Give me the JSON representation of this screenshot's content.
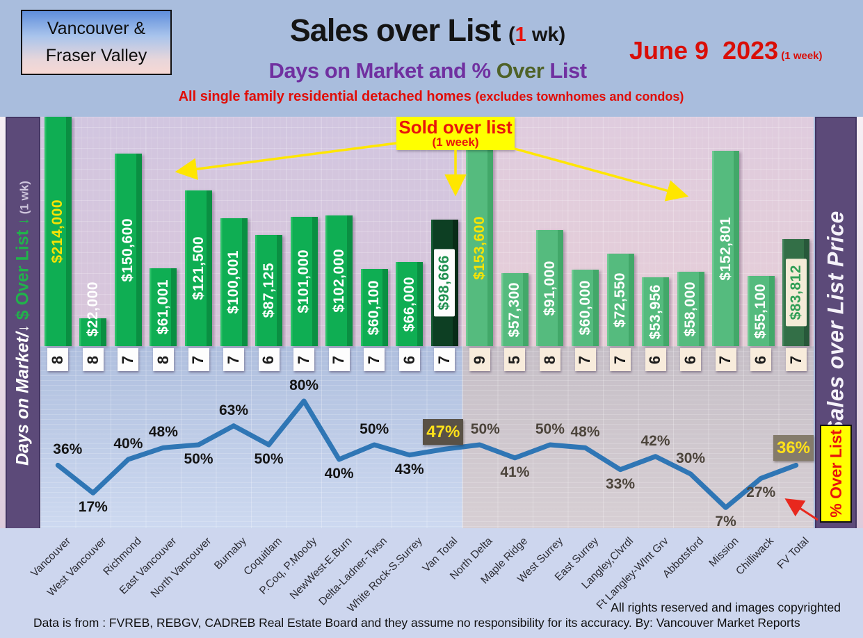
{
  "header": {
    "region_line1": "Vancouver &",
    "region_line2": "Fraser Valley",
    "title": "Sales over List ",
    "title_paren_open": "(",
    "title_one": "1",
    "title_rest": " wk)",
    "subtitle_part1": "Days on Market and % ",
    "subtitle_over": "Over",
    "subtitle_list": " List",
    "tagline_main": "All single family residential detached homes ",
    "tagline_paren": "(excludes townhomes and condos)",
    "date": "June 9  2023",
    "date_note": " (1 week)"
  },
  "left_axis": {
    "part1": "Days on Market/",
    "arrow1": "↓",
    "part2": " $ Over List ",
    "arrow2": "↓",
    "part3": " (1 wk)"
  },
  "right_axis_label": "Sales over List Price",
  "callout": {
    "line1": "Sold over list",
    "line2": "(1 week)"
  },
  "pct_over_list_tag": "% Over List",
  "footer": {
    "rights": "All rights reserved and  images copyrighted",
    "source": "Data is from : FVREB, REBGV, CADREB Real Estate Board and they assume no responsibility for its accuracy. By: Vancouver Market Reports"
  },
  "chart_data": {
    "type": "combo (bar + line)",
    "categories": [
      "Vancouver",
      "West Vancouver",
      "Richmond",
      "East Vancouver",
      "North Vancouver",
      "Burnaby",
      "Coquitlam",
      "P.Coq, P.Moody",
      "NewWest-E.Burn",
      "Delta-Ladner-Twsn",
      "White Rock-S.Surrey",
      "Van Total",
      "North Delta",
      "Maple Ridge",
      "West Surrey",
      "East Surrey",
      "Langley,Clvrdl",
      "Ft Langley-WInt Grv",
      "Abbotsford",
      "Mission",
      "Chilliwack",
      "FV Total"
    ],
    "series": [
      {
        "name": "$ Over List (1 wk)",
        "type": "bar",
        "values": [
          214000,
          22000,
          150600,
          61001,
          121500,
          100001,
          87125,
          101000,
          102000,
          60100,
          66000,
          98666,
          153600,
          57300,
          91000,
          60000,
          72550,
          53956,
          58000,
          152801,
          55100,
          83812
        ],
        "labels": [
          "$214,000",
          "$22,000",
          "$150,600",
          "$61,001",
          "$121,500",
          "$100,001",
          "$87,125",
          "$101,000",
          "$102,000",
          "$60,100",
          "$66,000",
          "$98,666",
          "$153,600",
          "$57,300",
          "$91,000",
          "$60,000",
          "$72,550",
          "$53,956",
          "$58,000",
          "$152,801",
          "$55,100",
          "$83,812"
        ]
      },
      {
        "name": "Days on Market",
        "type": "table",
        "values": [
          8,
          8,
          7,
          8,
          7,
          7,
          6,
          7,
          7,
          7,
          6,
          7,
          9,
          5,
          8,
          7,
          7,
          6,
          6,
          7,
          6,
          7
        ]
      },
      {
        "name": "% Over List",
        "type": "line",
        "values": [
          36,
          17,
          40,
          48,
          50,
          63,
          50,
          80,
          40,
          50,
          43,
          47,
          50,
          41,
          50,
          48,
          33,
          42,
          30,
          7,
          27,
          36
        ],
        "labels": [
          "36%",
          "17%",
          "40%",
          "48%",
          "50%",
          "63%",
          "50%",
          "80%",
          "40%",
          "50%",
          "43%",
          "47%",
          "50%",
          "41%",
          "50%",
          "48%",
          "33%",
          "42%",
          "30%",
          "7%",
          "27%",
          "36%"
        ]
      }
    ],
    "groups": {
      "vancouver_indexes": [
        0,
        1,
        2,
        3,
        4,
        5,
        6,
        7,
        8,
        9,
        10,
        11
      ],
      "fraser_valley_indexes": [
        12,
        13,
        14,
        15,
        16,
        17,
        18,
        19,
        20,
        21
      ],
      "total_indexes": [
        11,
        21
      ],
      "yellow_bar_label_indexes": [
        0,
        12
      ]
    },
    "pct_label_side": [
      "above",
      "below",
      "above",
      "above",
      "below",
      "above",
      "below",
      "above",
      "below",
      "above",
      "below",
      "box",
      "above",
      "below",
      "above",
      "above",
      "below",
      "above",
      "above",
      "below",
      "below",
      "box"
    ],
    "colors": {
      "van_bar": "#0fae53",
      "fv_bar": "#55bb7e",
      "van_total_bar": "#0d3f23",
      "fv_total_bar": "#336f47",
      "line": "#2f76b5",
      "pct_box_bg_van": "#595146",
      "pct_box_bg_fv": "#847b6b",
      "pct_box_text": "#ffe11a",
      "bar_label_yellow": "#f7e304",
      "accent_yellow": "#ffff00",
      "accent_red": "#e8140c"
    },
    "ylim_bar": [
      0,
      214000
    ],
    "ylim_line_pct": [
      0,
      100
    ],
    "grid": true,
    "legend": "none"
  }
}
